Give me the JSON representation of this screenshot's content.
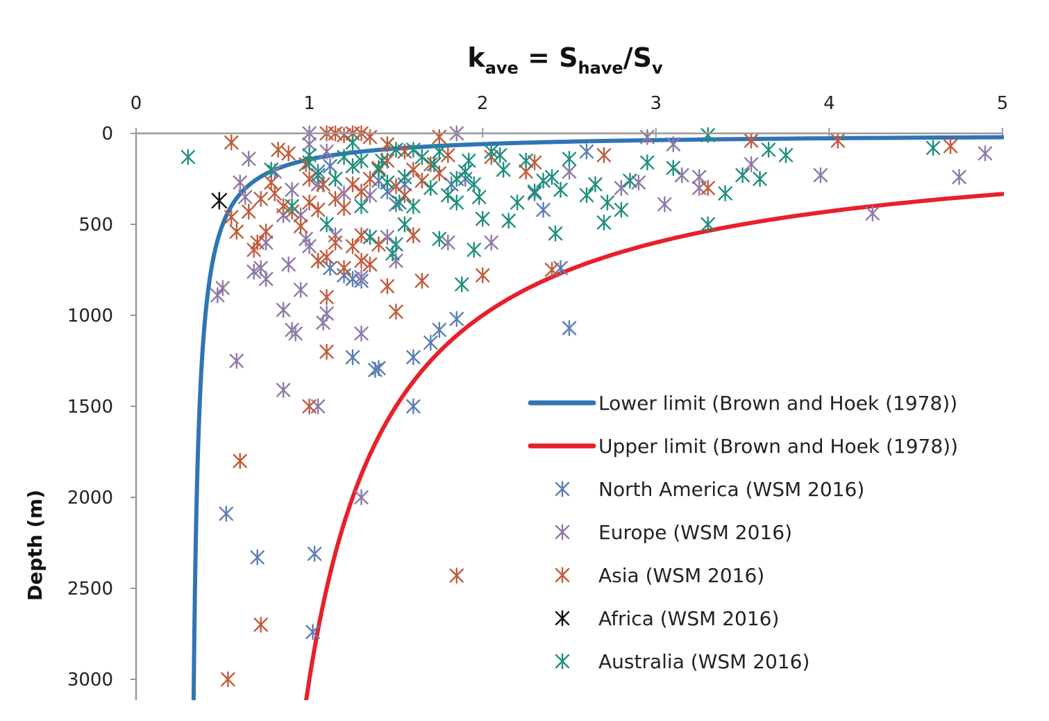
{
  "chart_data": {
    "type": "scatter",
    "title": "",
    "xlabel": {
      "base": "k",
      "base_sub": "ave",
      "eq": " = S",
      "eq_sub": "have",
      "slash": "/S",
      "slash_sub": "v"
    },
    "ylabel": "Depth (m)",
    "xlim": [
      0,
      5
    ],
    "ylim": [
      3100,
      0
    ],
    "x_ticks": [
      "0",
      "1",
      "2",
      "3",
      "4",
      "5"
    ],
    "y_ticks": [
      "0",
      "500",
      "1000",
      "1500",
      "2000",
      "2500",
      "3000"
    ],
    "x_axis_position": "top",
    "grid": false,
    "legend_position": "right-middle",
    "curves": [
      {
        "name": "Lower limit (Brown and Hoek (1978))",
        "color": "#2f75b5",
        "formula": "0.3 + 100/z"
      },
      {
        "name": "Upper limit (Brown and Hoek (1978))",
        "color": "#e8202a",
        "formula": "0.5 + 1500/z"
      }
    ],
    "series": [
      {
        "name": "North America (WSM 2016)",
        "color": "#5b7db5",
        "points": [
          [
            2.5,
            1070
          ],
          [
            2.45,
            740
          ],
          [
            1.85,
            1020
          ],
          [
            1.75,
            1080
          ],
          [
            1.7,
            1150
          ],
          [
            1.6,
            1230
          ],
          [
            1.4,
            1290
          ],
          [
            1.38,
            1300
          ],
          [
            1.25,
            1230
          ],
          [
            1.6,
            1500
          ],
          [
            0.52,
            2090
          ],
          [
            0.7,
            2330
          ],
          [
            1.03,
            2310
          ],
          [
            1.02,
            2740
          ],
          [
            2.6,
            100
          ],
          [
            1.3,
            810
          ],
          [
            1.25,
            800
          ],
          [
            1.2,
            780
          ],
          [
            1.12,
            740
          ],
          [
            1.05,
            700
          ],
          [
            2.3,
            330
          ],
          [
            2.35,
            420
          ],
          [
            1.55,
            280
          ],
          [
            1.45,
            320
          ],
          [
            1.9,
            250
          ],
          [
            1.82,
            280
          ],
          [
            1.05,
            210
          ],
          [
            1.12,
            180
          ],
          [
            1.5,
            390
          ],
          [
            1.4,
            260
          ]
        ]
      },
      {
        "name": "Europe (WSM 2016)",
        "color": "#8f79a8",
        "points": [
          [
            1.3,
            2000
          ],
          [
            0.85,
            1410
          ],
          [
            1.05,
            1500
          ],
          [
            0.58,
            1250
          ],
          [
            0.85,
            970
          ],
          [
            0.9,
            1080
          ],
          [
            0.92,
            1100
          ],
          [
            1.08,
            1040
          ],
          [
            1.1,
            990
          ],
          [
            1.3,
            1100
          ],
          [
            0.5,
            850
          ],
          [
            0.47,
            890
          ],
          [
            0.75,
            800
          ],
          [
            0.68,
            760
          ],
          [
            0.72,
            740
          ],
          [
            0.88,
            720
          ],
          [
            0.95,
            860
          ],
          [
            1.0,
            620
          ],
          [
            0.98,
            580
          ],
          [
            1.15,
            560
          ],
          [
            1.3,
            790
          ],
          [
            0.63,
            350
          ],
          [
            0.8,
            210
          ],
          [
            0.9,
            310
          ],
          [
            0.95,
            450
          ],
          [
            1.05,
            280
          ],
          [
            1.1,
            100
          ],
          [
            1.0,
            60
          ],
          [
            1.0,
            0
          ],
          [
            1.85,
            0
          ],
          [
            2.95,
            20
          ],
          [
            3.1,
            60
          ],
          [
            3.05,
            390
          ],
          [
            3.25,
            300
          ],
          [
            3.25,
            240
          ],
          [
            3.15,
            230
          ],
          [
            3.55,
            170
          ],
          [
            3.95,
            230
          ],
          [
            4.25,
            440
          ],
          [
            4.75,
            240
          ],
          [
            4.9,
            110
          ],
          [
            2.5,
            210
          ],
          [
            2.05,
            600
          ],
          [
            1.8,
            600
          ],
          [
            1.6,
            560
          ],
          [
            1.45,
            570
          ],
          [
            1.5,
            700
          ],
          [
            0.85,
            450
          ],
          [
            0.75,
            600
          ],
          [
            0.65,
            140
          ],
          [
            0.6,
            270
          ],
          [
            1.2,
            330
          ],
          [
            1.35,
            340
          ],
          [
            2.8,
            300
          ],
          [
            2.9,
            270
          ]
        ]
      },
      {
        "name": "Asia (WSM 2016)",
        "color": "#c25b3c",
        "points": [
          [
            1.85,
            2430
          ],
          [
            0.72,
            2700
          ],
          [
            0.6,
            1800
          ],
          [
            0.53,
            3000
          ],
          [
            1.0,
            1500
          ],
          [
            1.1,
            1200
          ],
          [
            1.1,
            900
          ],
          [
            1.5,
            980
          ],
          [
            1.45,
            840
          ],
          [
            1.65,
            810
          ],
          [
            2.0,
            780
          ],
          [
            2.4,
            750
          ],
          [
            1.05,
            700
          ],
          [
            1.1,
            680
          ],
          [
            1.2,
            740
          ],
          [
            1.3,
            700
          ],
          [
            1.35,
            720
          ],
          [
            1.25,
            620
          ],
          [
            1.15,
            600
          ],
          [
            1.3,
            560
          ],
          [
            1.4,
            610
          ],
          [
            1.6,
            560
          ],
          [
            0.7,
            600
          ],
          [
            0.75,
            540
          ],
          [
            0.68,
            640
          ],
          [
            0.58,
            540
          ],
          [
            0.55,
            460
          ],
          [
            0.65,
            430
          ],
          [
            0.72,
            360
          ],
          [
            0.8,
            330
          ],
          [
            0.78,
            270
          ],
          [
            0.85,
            400
          ],
          [
            0.9,
            430
          ],
          [
            0.95,
            510
          ],
          [
            1.0,
            380
          ],
          [
            1.05,
            420
          ],
          [
            1.15,
            360
          ],
          [
            1.2,
            410
          ],
          [
            1.25,
            280
          ],
          [
            1.3,
            320
          ],
          [
            1.35,
            250
          ],
          [
            1.4,
            190
          ],
          [
            1.45,
            150
          ],
          [
            1.5,
            290
          ],
          [
            1.55,
            340
          ],
          [
            1.6,
            200
          ],
          [
            1.65,
            260
          ],
          [
            1.7,
            170
          ],
          [
            1.75,
            220
          ],
          [
            1.8,
            120
          ],
          [
            1.55,
            100
          ],
          [
            1.45,
            60
          ],
          [
            1.35,
            20
          ],
          [
            1.25,
            0
          ],
          [
            1.15,
            0
          ],
          [
            1.1,
            0
          ],
          [
            1.2,
            10
          ],
          [
            1.3,
            0
          ],
          [
            1.75,
            20
          ],
          [
            2.3,
            160
          ],
          [
            2.25,
            210
          ],
          [
            2.05,
            130
          ],
          [
            3.3,
            300
          ],
          [
            3.55,
            40
          ],
          [
            4.05,
            40
          ],
          [
            4.7,
            70
          ],
          [
            2.7,
            120
          ],
          [
            0.55,
            50
          ],
          [
            0.82,
            90
          ],
          [
            0.88,
            110
          ],
          [
            0.98,
            170
          ],
          [
            1.0,
            250
          ],
          [
            1.08,
            280
          ]
        ]
      },
      {
        "name": "Africa (WSM 2016)",
        "color": "#111111",
        "points": [
          [
            0.48,
            370
          ]
        ]
      },
      {
        "name": "Australia (WSM 2016)",
        "color": "#1f8f7e",
        "points": [
          [
            0.3,
            130
          ],
          [
            0.78,
            200
          ],
          [
            0.9,
            400
          ],
          [
            1.0,
            160
          ],
          [
            1.05,
            230
          ],
          [
            1.1,
            500
          ],
          [
            1.15,
            250
          ],
          [
            1.2,
            130
          ],
          [
            1.25,
            180
          ],
          [
            1.3,
            400
          ],
          [
            1.35,
            570
          ],
          [
            1.4,
            200
          ],
          [
            1.42,
            150
          ],
          [
            1.45,
            270
          ],
          [
            1.5,
            90
          ],
          [
            1.55,
            500
          ],
          [
            1.5,
            610
          ],
          [
            1.48,
            660
          ],
          [
            1.52,
            380
          ],
          [
            1.55,
            240
          ],
          [
            1.6,
            400
          ],
          [
            1.65,
            130
          ],
          [
            1.7,
            300
          ],
          [
            1.72,
            170
          ],
          [
            1.75,
            580
          ],
          [
            1.8,
            340
          ],
          [
            1.85,
            380
          ],
          [
            1.9,
            210
          ],
          [
            1.92,
            150
          ],
          [
            1.95,
            280
          ],
          [
            1.98,
            350
          ],
          [
            2.0,
            470
          ],
          [
            1.95,
            640
          ],
          [
            1.88,
            830
          ],
          [
            2.05,
            100
          ],
          [
            2.1,
            120
          ],
          [
            2.12,
            200
          ],
          [
            2.15,
            480
          ],
          [
            2.2,
            380
          ],
          [
            2.25,
            150
          ],
          [
            2.3,
            320
          ],
          [
            2.35,
            260
          ],
          [
            2.4,
            240
          ],
          [
            2.42,
            550
          ],
          [
            2.45,
            310
          ],
          [
            2.5,
            140
          ],
          [
            2.6,
            340
          ],
          [
            2.65,
            280
          ],
          [
            2.7,
            490
          ],
          [
            2.72,
            380
          ],
          [
            2.8,
            420
          ],
          [
            2.85,
            260
          ],
          [
            2.95,
            160
          ],
          [
            3.1,
            190
          ],
          [
            3.3,
            10
          ],
          [
            3.3,
            500
          ],
          [
            3.4,
            330
          ],
          [
            3.5,
            230
          ],
          [
            3.6,
            250
          ],
          [
            3.65,
            90
          ],
          [
            3.75,
            120
          ],
          [
            4.6,
            80
          ],
          [
            1.0,
            120
          ],
          [
            1.3,
            150
          ],
          [
            1.6,
            90
          ],
          [
            1.25,
            50
          ],
          [
            1.75,
            100
          ],
          [
            1.85,
            250
          ]
        ]
      }
    ]
  }
}
